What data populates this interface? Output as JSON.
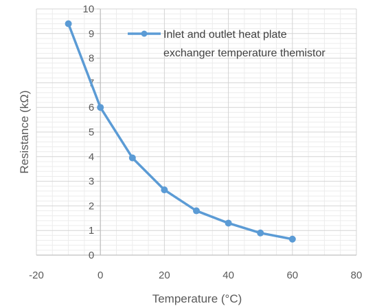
{
  "chart_data": {
    "type": "scatter",
    "title": "",
    "xlabel": "Temperature (°C)",
    "ylabel": "Resistance (kΩ)",
    "xlim": [
      -20,
      80
    ],
    "ylim": [
      0,
      10
    ],
    "x_ticks": [
      -20,
      0,
      20,
      40,
      60,
      80
    ],
    "y_ticks": [
      0,
      1,
      2,
      3,
      4,
      5,
      6,
      7,
      8,
      9,
      10
    ],
    "grid": true,
    "legend_position": "top-right",
    "legend_lines": [
      "Inlet and outlet heat plate",
      "exchanger temperature themistor"
    ],
    "series": [
      {
        "name": "Inlet and outlet heat plate exchanger temperature themistor",
        "color": "#5B9BD5",
        "marker": "circle",
        "x": [
          -10,
          0,
          10,
          20,
          30,
          40,
          50,
          60
        ],
        "y": [
          9.4,
          6.0,
          3.95,
          2.65,
          1.8,
          1.3,
          0.9,
          0.65
        ]
      }
    ]
  }
}
